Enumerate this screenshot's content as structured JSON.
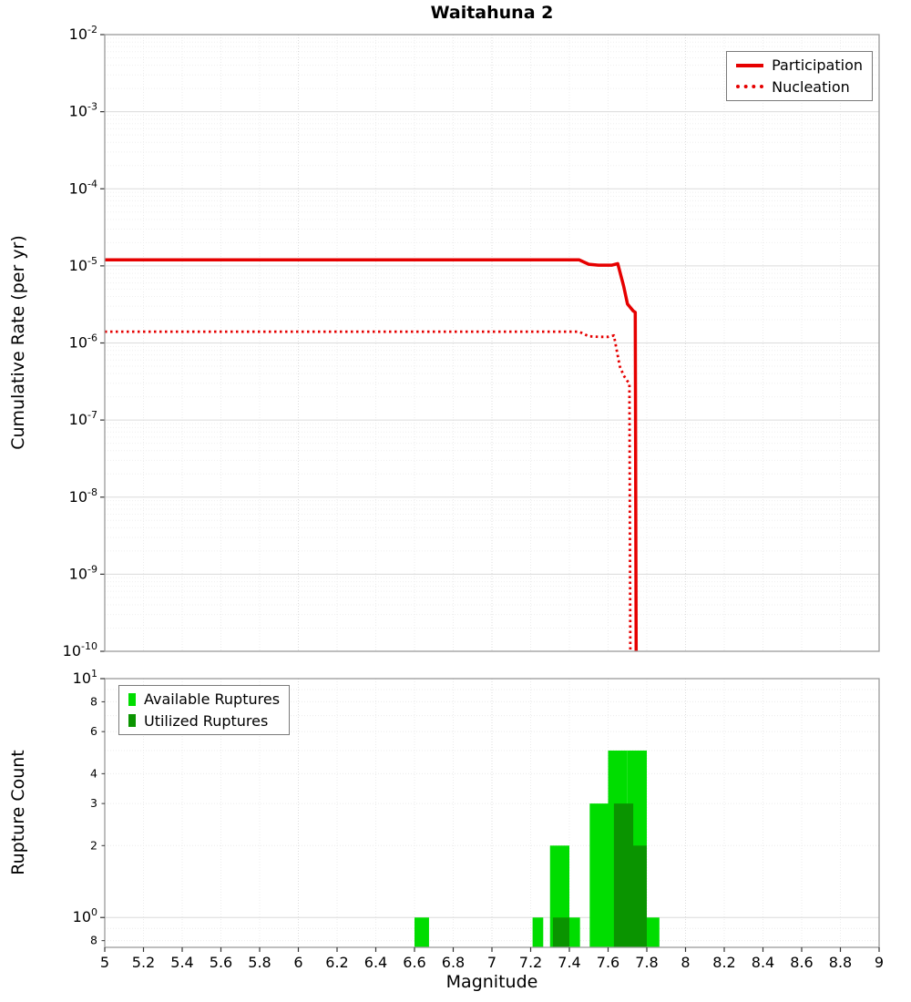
{
  "chart_data": {
    "title": "Waitahuna 2",
    "top_chart": {
      "type": "line",
      "ylabel": "Cumulative Rate (per yr)",
      "xlim": [
        5,
        9
      ],
      "ylim": [
        1e-10,
        0.01
      ],
      "x_tick_step": 0.2,
      "y_scale": "log",
      "grid": true,
      "legend_position": "top-right",
      "series": [
        {
          "name": "Participation",
          "style": "solid",
          "color": "#e60000",
          "points": [
            [
              5.0,
              1.2e-05
            ],
            [
              6.0,
              1.2e-05
            ],
            [
              7.0,
              1.2e-05
            ],
            [
              7.45,
              1.2e-05
            ],
            [
              7.5,
              1.05e-05
            ],
            [
              7.55,
              1.02e-05
            ],
            [
              7.62,
              1.02e-05
            ],
            [
              7.65,
              1.07e-05
            ],
            [
              7.68,
              5.5e-06
            ],
            [
              7.7,
              3.2e-06
            ],
            [
              7.73,
              2.6e-06
            ],
            [
              7.74,
              2.5e-06
            ],
            [
              7.745,
              1e-10
            ]
          ]
        },
        {
          "name": "Nucleation",
          "style": "dotted",
          "color": "#e60000",
          "points": [
            [
              5.0,
              1.4e-06
            ],
            [
              6.0,
              1.4e-06
            ],
            [
              7.0,
              1.4e-06
            ],
            [
              7.45,
              1.4e-06
            ],
            [
              7.5,
              1.22e-06
            ],
            [
              7.55,
              1.2e-06
            ],
            [
              7.6,
              1.2e-06
            ],
            [
              7.63,
              1.25e-06
            ],
            [
              7.66,
              5e-07
            ],
            [
              7.68,
              3.8e-07
            ],
            [
              7.7,
              3.2e-07
            ],
            [
              7.71,
              3e-07
            ],
            [
              7.715,
              1e-10
            ]
          ]
        }
      ]
    },
    "bottom_chart": {
      "type": "bar",
      "ylabel": "Rupture Count",
      "xlabel": "Magnitude",
      "xlim": [
        5,
        9
      ],
      "ylim": [
        0.75,
        10
      ],
      "x_tick_step": 0.2,
      "y_scale": "log",
      "grid": true,
      "legend_position": "top-left",
      "y_ticks_major": [
        10,
        1
      ],
      "y_ticks_minor_labeled": [
        8,
        6,
        4,
        3,
        2,
        0.8
      ],
      "legend": [
        {
          "label": "Available Ruptures",
          "color": "#00dd00"
        },
        {
          "label": "Utilized Ruptures",
          "color": "#0a9400"
        }
      ],
      "available_bars": [
        {
          "x0": 6.6,
          "x1": 6.675,
          "count": 1
        },
        {
          "x0": 7.21,
          "x1": 7.265,
          "count": 1
        },
        {
          "x0": 7.3,
          "x1": 7.4,
          "count": 2
        },
        {
          "x0": 7.4,
          "x1": 7.455,
          "count": 1
        },
        {
          "x0": 7.505,
          "x1": 7.6,
          "count": 3
        },
        {
          "x0": 7.6,
          "x1": 7.7,
          "count": 5
        },
        {
          "x0": 7.7,
          "x1": 7.8,
          "count": 5
        },
        {
          "x0": 7.8,
          "x1": 7.865,
          "count": 1
        }
      ],
      "utilized_bars": [
        {
          "x0": 7.315,
          "x1": 7.4,
          "count": 1
        },
        {
          "x0": 7.63,
          "x1": 7.73,
          "count": 3
        },
        {
          "x0": 7.7,
          "x1": 7.8,
          "count": 2
        }
      ]
    }
  }
}
